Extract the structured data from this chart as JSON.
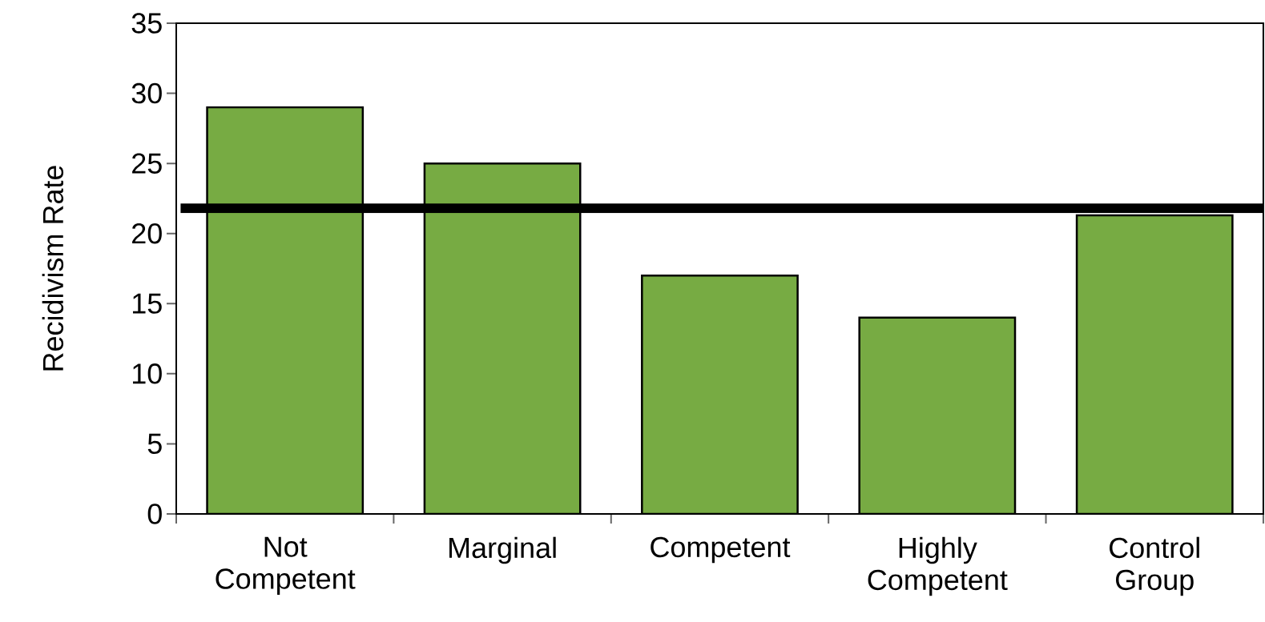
{
  "chart_data": {
    "type": "bar",
    "ylabel": "Recidivism Rate",
    "categories": [
      "Not Competent",
      "Marginal",
      "Competent",
      "Highly Competent",
      "Control Group"
    ],
    "values": [
      29,
      25,
      17,
      14,
      21.3
    ],
    "color": "#77ab43",
    "ylim": [
      0,
      35
    ],
    "yticks": [
      0,
      5,
      10,
      15,
      20,
      25,
      30,
      35
    ],
    "ref_lines": [
      {
        "axis": "y",
        "value": 21.8,
        "color": "#000000"
      }
    ]
  }
}
